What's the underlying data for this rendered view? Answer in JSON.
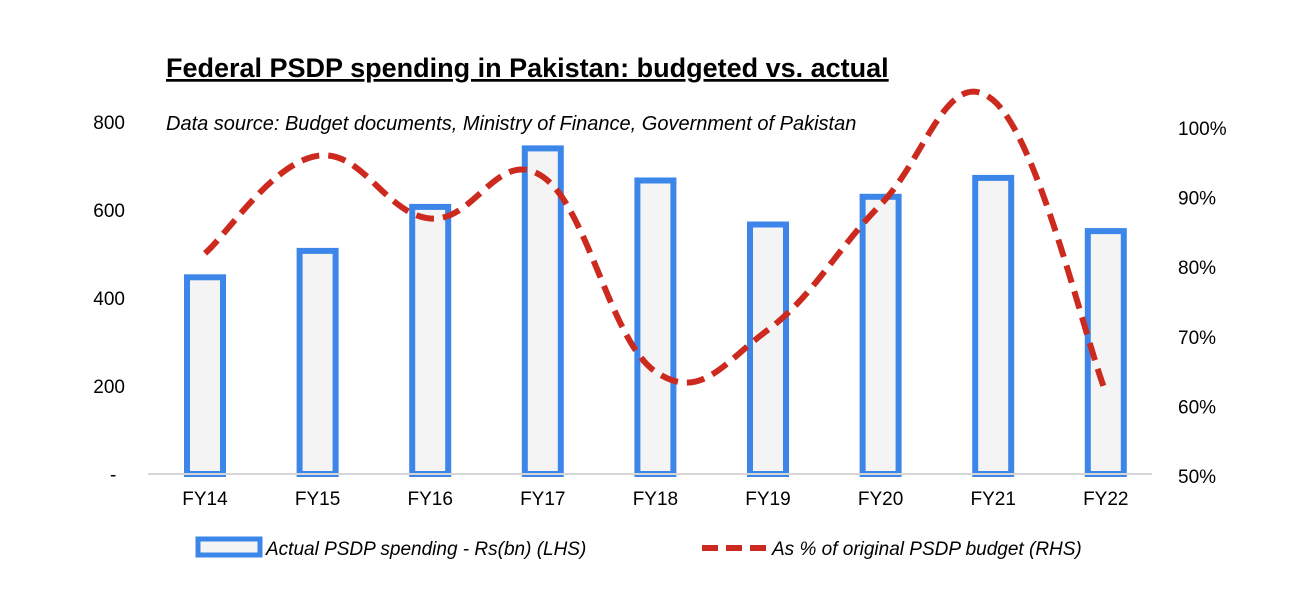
{
  "chart_data": {
    "type": "bar",
    "title": "Federal PSDP spending in Pakistan: budgeted vs. actual",
    "subtitle": "Data source: Budget documents, Ministry of Finance, Government of Pakistan",
    "categories": [
      "FY14",
      "FY15",
      "FY16",
      "FY17",
      "FY18",
      "FY19",
      "FY20",
      "FY21",
      "FY22"
    ],
    "series": [
      {
        "name": "Actual PSDP spending - Rs(bn) (LHS)",
        "type": "bar",
        "axis": "left",
        "color": "#3b86e8",
        "fill": "#f4f4f4",
        "values": [
          447,
          507,
          607,
          740,
          667,
          567,
          630,
          673,
          552
        ]
      },
      {
        "name": "As % of original PSDP budget (RHS)",
        "type": "line",
        "axis": "right",
        "style": "dashed",
        "color": "#cc2a1f",
        "values": [
          82,
          96,
          87,
          93,
          65,
          71,
          89,
          104,
          62
        ]
      }
    ],
    "y_left": {
      "ylim": [
        0,
        800
      ],
      "ticks": [
        0,
        200,
        400,
        600,
        800
      ],
      "tick_labels": [
        "-",
        "200",
        "400",
        "600",
        "800"
      ]
    },
    "y_right": {
      "ylim": [
        50,
        100
      ],
      "ticks": [
        50,
        60,
        70,
        80,
        90,
        100
      ],
      "tick_labels": [
        "50%",
        "60%",
        "70%",
        "80%",
        "90%",
        "100%"
      ]
    },
    "grid": false,
    "legend": "bottom"
  }
}
